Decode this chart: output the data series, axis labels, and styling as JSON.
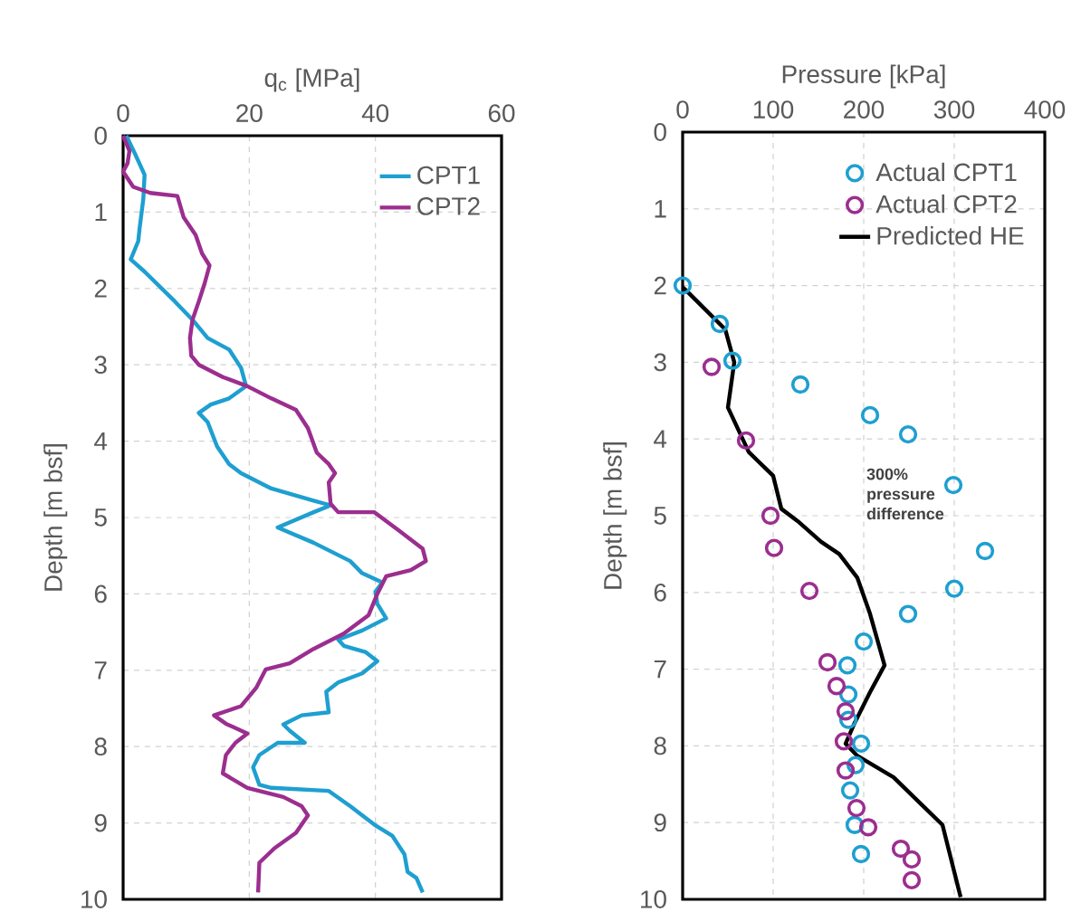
{
  "chart_data": [
    {
      "type": "line",
      "xlabel": "q$_{c}$ [MPa]",
      "ylabel": "Depth [m bsf]",
      "xlim": [
        0,
        60
      ],
      "xticks": [
        0,
        20,
        40,
        60
      ],
      "ylim": [
        10,
        0
      ],
      "yticks": [
        0,
        1,
        2,
        3,
        4,
        5,
        6,
        7,
        8,
        9,
        10
      ],
      "grid": true,
      "legend": "top right",
      "series": [
        {
          "name": "CPT1",
          "color": "#1e9fd0",
          "x": [
            0.5,
            1.9,
            3.4,
            3.2,
            2.6,
            2.4,
            1.2,
            3.4,
            8.2,
            11.0,
            13.4,
            16.8,
            18.7,
            19.5,
            16.8,
            13.9,
            12.0,
            13.4,
            14.9,
            16.8,
            18.7,
            23.5,
            30.2,
            32.9,
            30.2,
            24.5,
            30.2,
            36.0,
            37.9,
            41.1,
            40.0,
            40.3,
            41.7,
            37.9,
            34.1,
            35.0,
            38.4,
            40.3,
            37.9,
            34.1,
            32.2,
            32.6,
            28.3,
            25.4,
            26.4,
            28.8,
            24.5,
            21.6,
            20.6,
            21.6,
            23.5,
            32.6,
            36.0,
            39.8,
            42.7,
            44.6,
            45.1,
            46.5,
            47.5
          ],
          "values": [
            0,
            0.24,
            0.51,
            0.83,
            1.22,
            1.38,
            1.62,
            1.78,
            2.17,
            2.41,
            2.65,
            2.8,
            3.04,
            3.28,
            3.44,
            3.52,
            3.63,
            3.75,
            4.07,
            4.3,
            4.42,
            4.62,
            4.78,
            4.84,
            4.93,
            5.13,
            5.33,
            5.57,
            5.73,
            5.85,
            5.97,
            6.13,
            6.32,
            6.48,
            6.6,
            6.68,
            6.76,
            6.88,
            7.04,
            7.16,
            7.28,
            7.55,
            7.59,
            7.71,
            7.79,
            7.95,
            7.95,
            8.11,
            8.27,
            8.5,
            8.54,
            8.58,
            8.78,
            9.02,
            9.17,
            9.41,
            9.64,
            9.72,
            9.91
          ]
        },
        {
          "name": "CPT2",
          "color": "#9b2e8f",
          "x": [
            0,
            1.0,
            0.7,
            0,
            1.6,
            4.3,
            8.6,
            9.6,
            11.5,
            12.5,
            13.7,
            12.9,
            12.0,
            11.0,
            10.6,
            10.8,
            12.0,
            15.8,
            19.7,
            23.5,
            27.4,
            29.3,
            30.7,
            32.6,
            33.6,
            32.6,
            32.9,
            34.1,
            39.8,
            43.7,
            47.5,
            48.0,
            45.6,
            41.7,
            40.3,
            38.9,
            35.0,
            30.2,
            26.4,
            22.6,
            21.1,
            18.7,
            14.4,
            16.3,
            19.7,
            17.8,
            16.3,
            15.8,
            19.7,
            25.4,
            28.3,
            29.3,
            27.4,
            24.0,
            21.6,
            21.4
          ],
          "values": [
            0,
            0.2,
            0.36,
            0.47,
            0.67,
            0.75,
            0.79,
            1.07,
            1.3,
            1.54,
            1.7,
            1.94,
            2.17,
            2.41,
            2.65,
            2.88,
            3.0,
            3.16,
            3.28,
            3.44,
            3.59,
            3.83,
            4.15,
            4.3,
            4.42,
            4.54,
            4.82,
            4.93,
            4.93,
            5.17,
            5.41,
            5.57,
            5.69,
            5.77,
            6.0,
            6.28,
            6.52,
            6.72,
            6.91,
            6.99,
            7.23,
            7.47,
            7.59,
            7.7,
            7.83,
            7.95,
            8.11,
            8.35,
            8.54,
            8.66,
            8.78,
            8.9,
            9.13,
            9.33,
            9.52,
            9.91
          ]
        }
      ]
    },
    {
      "type": "scatter",
      "xlabel": "Pressure [kPa]",
      "ylabel": "Depth [m bsf]",
      "xlim": [
        0,
        400
      ],
      "xticks": [
        0,
        100,
        200,
        300,
        400
      ],
      "ylim": [
        10,
        0
      ],
      "yticks": [
        0,
        1,
        2,
        3,
        4,
        5,
        6,
        7,
        8,
        9,
        10
      ],
      "grid": true,
      "legend": "top right",
      "annotations": [
        "300% pressure difference"
      ],
      "series": [
        {
          "name": "Actual CPT1",
          "type": "scatter",
          "marker": "circle",
          "color": "#1e9fd0",
          "x": [
            0,
            41,
            55,
            130,
            207,
            249,
            299,
            334,
            300,
            249,
            200,
            182,
            183,
            183,
            197,
            191,
            185,
            190,
            197
          ],
          "values": [
            2.0,
            2.5,
            2.98,
            3.29,
            3.69,
            3.94,
            4.6,
            5.46,
            5.95,
            6.28,
            6.64,
            6.95,
            7.33,
            7.66,
            7.97,
            8.25,
            8.58,
            9.03,
            9.41
          ]
        },
        {
          "name": "Actual CPT2",
          "type": "scatter",
          "marker": "circle",
          "color": "#9b2e8f",
          "x": [
            32,
            70,
            97,
            101,
            140,
            160,
            170,
            180,
            178,
            180,
            192,
            205,
            241,
            253,
            253
          ],
          "values": [
            3.06,
            4.02,
            5.0,
            5.42,
            5.98,
            6.91,
            7.22,
            7.55,
            7.94,
            8.32,
            8.81,
            9.06,
            9.34,
            9.48,
            9.75
          ]
        },
        {
          "name": "Predicted HE",
          "type": "line",
          "marker": "none",
          "color": "#000000",
          "x": [
            0,
            7,
            47,
            57,
            50,
            73,
            100,
            109,
            127,
            153,
            173,
            193,
            207,
            223,
            207,
            190,
            180,
            193,
            233,
            260,
            287,
            307
          ],
          "values": [
            2.02,
            2.1,
            2.57,
            3.0,
            3.59,
            4.17,
            4.48,
            4.91,
            5.07,
            5.34,
            5.5,
            5.81,
            6.28,
            6.95,
            7.3,
            7.7,
            7.97,
            8.13,
            8.41,
            8.72,
            9.03,
            9.97
          ]
        }
      ]
    }
  ]
}
